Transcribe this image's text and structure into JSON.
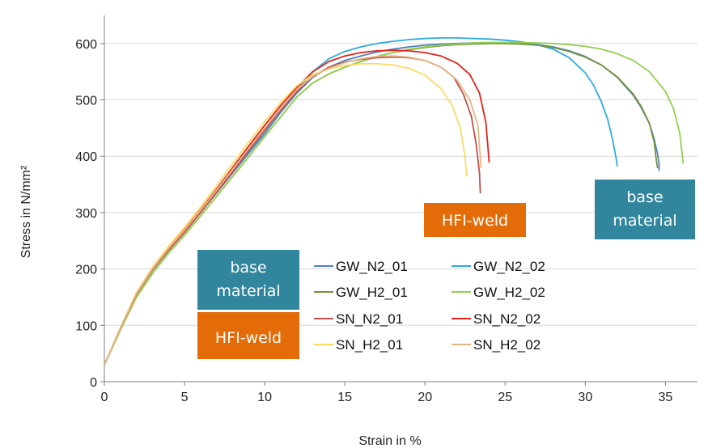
{
  "chart_data": {
    "type": "line",
    "title": "",
    "xlabel": "Strain in %",
    "ylabel": "Stress in N/mm²",
    "xlim": [
      0,
      37
    ],
    "ylim": [
      0,
      650
    ],
    "xticks": [
      "0",
      "5",
      "10",
      "15",
      "20",
      "25",
      "30",
      "35"
    ],
    "yticks": [
      "0",
      "100",
      "200",
      "300",
      "400",
      "500",
      "600"
    ],
    "grid": "horizontal",
    "series": [
      {
        "name": "GW_N2_01",
        "color": "#4f81bd",
        "x": [
          0,
          1,
          2,
          3,
          4,
          5,
          6,
          7,
          8,
          9,
          10,
          11,
          12,
          13,
          14,
          15,
          16,
          17,
          18,
          19,
          20,
          21,
          22,
          23,
          24,
          25,
          26,
          27,
          28,
          29,
          30,
          31,
          32,
          33,
          33.5,
          34,
          34.3,
          34.5,
          34.6,
          34.6
        ],
        "y": [
          30,
          95,
          155,
          198,
          233,
          265,
          300,
          335,
          370,
          405,
          440,
          478,
          512,
          540,
          558,
          570,
          578,
          585,
          590,
          594,
          597,
          599,
          600,
          601,
          601,
          601,
          600,
          598,
          594,
          587,
          577,
          562,
          540,
          508,
          486,
          458,
          430,
          405,
          387,
          375
        ]
      },
      {
        "name": "GW_N2_02",
        "color": "#2eaae1",
        "x": [
          0,
          1,
          2,
          3,
          4,
          5,
          6,
          7,
          8,
          9,
          10,
          11,
          12,
          13,
          14,
          15,
          16,
          17,
          18,
          19,
          20,
          21,
          22,
          23,
          24,
          25,
          26,
          27,
          28,
          29,
          30,
          30.5,
          31,
          31.4,
          31.7,
          31.9,
          32
        ],
        "y": [
          30,
          95,
          155,
          198,
          233,
          266,
          300,
          336,
          372,
          408,
          445,
          482,
          517,
          550,
          573,
          586,
          594,
          600,
          604,
          607,
          609,
          610,
          610,
          609,
          608,
          606,
          603,
          598,
          590,
          575,
          548,
          527,
          497,
          465,
          430,
          400,
          383
        ]
      },
      {
        "name": "GW_H2_01",
        "color": "#77933c",
        "x": [
          0,
          1,
          2,
          3,
          4,
          5,
          6,
          7,
          8,
          9,
          10,
          11,
          12,
          13,
          14,
          15,
          16,
          17,
          18,
          19,
          20,
          21,
          22,
          23,
          24,
          25,
          26,
          27,
          28,
          29,
          30,
          31,
          32,
          33,
          33.5,
          34,
          34.3,
          34.4,
          34.5
        ],
        "y": [
          30,
          92,
          150,
          192,
          228,
          260,
          294,
          329,
          364,
          399,
          435,
          470,
          505,
          530,
          546,
          558,
          568,
          577,
          584,
          589,
          593,
          596,
          598,
          599,
          600,
          600,
          599,
          597,
          593,
          586,
          576,
          562,
          541,
          510,
          488,
          458,
          425,
          400,
          380
        ]
      },
      {
        "name": "GW_H2_02",
        "color": "#92d050",
        "x": [
          0,
          1,
          2,
          3,
          4,
          5,
          6,
          7,
          8,
          9,
          10,
          11,
          12,
          13,
          14,
          15,
          16,
          17,
          18,
          19,
          20,
          21,
          22,
          23,
          24,
          25,
          26,
          27,
          28,
          29,
          30,
          31,
          32,
          33,
          34,
          35,
          35.5,
          35.9,
          36.1
        ],
        "y": [
          30,
          92,
          150,
          192,
          228,
          260,
          294,
          329,
          364,
          399,
          435,
          470,
          505,
          530,
          546,
          558,
          568,
          577,
          584,
          590,
          594,
          597,
          599,
          601,
          602,
          602,
          602,
          601,
          600,
          598,
          595,
          590,
          582,
          570,
          550,
          515,
          485,
          440,
          388
        ]
      },
      {
        "name": "SN_N2_01",
        "color": "#c0504d",
        "x": [
          0,
          1,
          2,
          3,
          4,
          5,
          6,
          7,
          8,
          9,
          10,
          11,
          12,
          13,
          14,
          15,
          16,
          17,
          18,
          19,
          20,
          21,
          21.8,
          22.4,
          22.9,
          23.2,
          23.4,
          23.45
        ],
        "y": [
          30,
          95,
          155,
          198,
          233,
          265,
          300,
          336,
          372,
          410,
          446,
          482,
          515,
          542,
          558,
          567,
          572,
          575,
          576,
          575,
          570,
          558,
          540,
          510,
          470,
          420,
          370,
          335
        ]
      },
      {
        "name": "SN_N2_02",
        "color": "#e2231a",
        "x": [
          0,
          1,
          2,
          3,
          4,
          5,
          6,
          7,
          8,
          9,
          10,
          11,
          12,
          13,
          14,
          15,
          16,
          17,
          18,
          19,
          20,
          21,
          22,
          22.8,
          23.4,
          23.8,
          24.0
        ],
        "y": [
          30,
          95,
          156,
          200,
          236,
          270,
          305,
          342,
          380,
          418,
          455,
          490,
          522,
          550,
          568,
          578,
          584,
          587,
          588,
          587,
          584,
          578,
          565,
          545,
          512,
          460,
          390
        ]
      },
      {
        "name": "SN_H2_01",
        "color": "#ffd966",
        "x": [
          0,
          1,
          2,
          3,
          4,
          5,
          6,
          7,
          8,
          9,
          10,
          11,
          12,
          13,
          14,
          15,
          16,
          17,
          18,
          19,
          20,
          21,
          21.7,
          22.2,
          22.5,
          22.6
        ],
        "y": [
          30,
          96,
          158,
          203,
          240,
          274,
          310,
          348,
          387,
          425,
          462,
          495,
          525,
          545,
          555,
          561,
          564,
          564,
          562,
          556,
          544,
          520,
          490,
          450,
          400,
          365
        ]
      },
      {
        "name": "SN_H2_02",
        "color": "#e6b680",
        "x": [
          0,
          1,
          2,
          3,
          4,
          5,
          6,
          7,
          8,
          9,
          10,
          11,
          12,
          13,
          14,
          15,
          16,
          17,
          18,
          19,
          20,
          21,
          22,
          22.8,
          23.3,
          23.5
        ],
        "y": [
          30,
          95,
          156,
          200,
          236,
          269,
          304,
          340,
          377,
          414,
          450,
          485,
          518,
          542,
          556,
          566,
          573,
          577,
          578,
          576,
          570,
          558,
          535,
          500,
          455,
          380
        ]
      }
    ],
    "annotations": [
      {
        "text": "HFI-weld",
        "color": "#e36c09"
      },
      {
        "text": "base material",
        "color": "#31859c"
      }
    ],
    "legend": {
      "groups": [
        {
          "label": "base material",
          "color": "#31859c"
        },
        {
          "label": "HFI-weld",
          "color": "#e36c09"
        }
      ],
      "placement": "bottom-left"
    }
  }
}
